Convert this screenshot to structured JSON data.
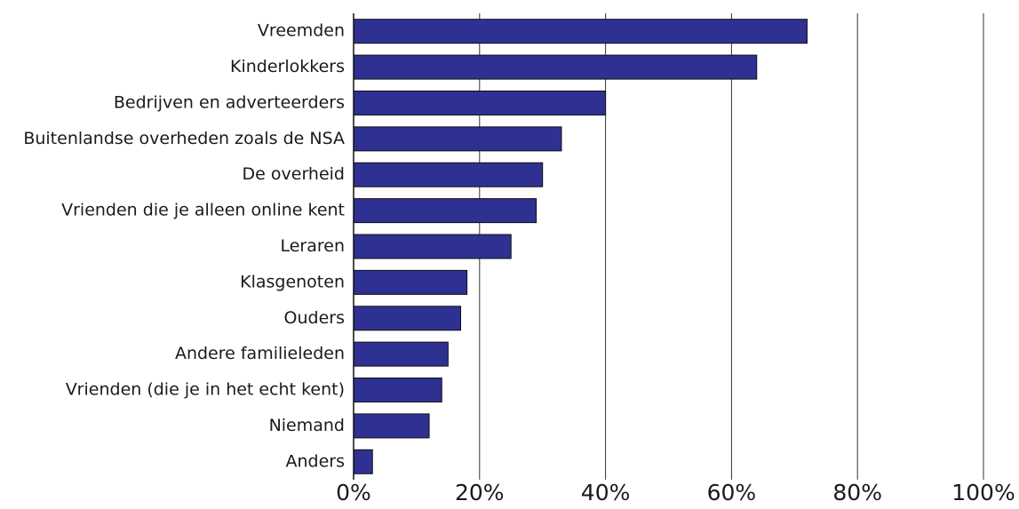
{
  "chart_data": {
    "type": "bar",
    "orientation": "horizontal",
    "categories": [
      "Vreemden",
      "Kinderlokkers",
      "Bedrijven en adverteerders",
      "Buitenlandse overheden zoals de NSA",
      "De overheid",
      "Vrienden die je alleen online kent",
      "Leraren",
      "Klasgenoten",
      "Ouders",
      "Andere familieleden",
      "Vrienden (die je in het echt kent)",
      "Niemand",
      "Anders"
    ],
    "values": [
      72,
      64,
      40,
      33,
      30,
      29,
      25,
      18,
      17,
      15,
      14,
      12,
      3
    ],
    "color": "#2e3192",
    "xlim": [
      0,
      100
    ],
    "xticks": [
      {
        "value": 0,
        "label": "0%"
      },
      {
        "value": 20,
        "label": "20%"
      },
      {
        "value": 40,
        "label": "40%"
      },
      {
        "value": 60,
        "label": "60%"
      },
      {
        "value": 80,
        "label": "80%"
      },
      {
        "value": 100,
        "label": "100%"
      }
    ],
    "grid": true
  }
}
